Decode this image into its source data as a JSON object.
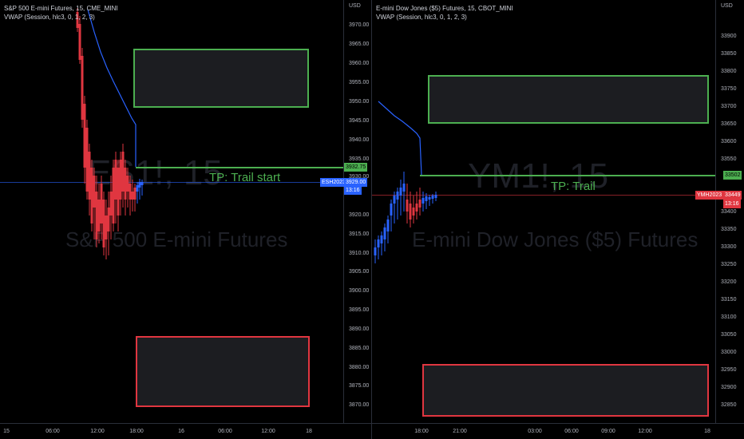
{
  "left": {
    "legend": {
      "title": "S&P 500 E-mini Futures, 15, CME_MINI",
      "indicator": "VWAP (Session, hlc3, 0, 1, 2, 3)"
    },
    "watermark": {
      "symbol": "ES1!, 15",
      "name": "S&P 500 E-mini Futures"
    },
    "axis_unit": "USD",
    "price_ticks": [
      "3970.00",
      "3965.00",
      "3960.00",
      "3955.00",
      "3950.00",
      "3945.00",
      "3940.00",
      "3935.00",
      "3930.00",
      "3925.00",
      "3920.00",
      "3915.00",
      "3910.00",
      "3905.00",
      "3900.00",
      "3895.00",
      "3890.00",
      "3885.00",
      "3880.00",
      "3875.00",
      "3870.00"
    ],
    "time_ticks": [
      "15",
      "06:00",
      "12:00",
      "18:00",
      "16",
      "06:00",
      "12:00",
      "18"
    ],
    "tp_label": "TP: Trail start",
    "tp_price": "3932.75",
    "symbol_tag": "ESH2023",
    "last_price": "3929.00",
    "countdown": "13:16",
    "hidden_tick": "3930.00"
  },
  "right": {
    "legend": {
      "title": "E-mini Dow Jones ($5) Futures, 15, CBOT_MINI",
      "indicator": "VWAP (Session, hlc3, 0, 1, 2, 3)"
    },
    "watermark": {
      "symbol": "YM1!, 15",
      "name": "E-mini Dow Jones ($5) Futures"
    },
    "axis_unit": "USD",
    "price_ticks": [
      "33900",
      "33850",
      "33800",
      "33750",
      "33700",
      "33650",
      "33600",
      "33550",
      "33500",
      "33450",
      "33400",
      "33350",
      "33300",
      "33250",
      "33200",
      "33150",
      "33100",
      "33050",
      "33000",
      "32950",
      "32900",
      "32850"
    ],
    "time_ticks": [
      "18:00",
      "21:00",
      "03:00",
      "06:00",
      "09:00",
      "12:00",
      "18"
    ],
    "tp_label": "TP: Trail",
    "tp_price": "33502",
    "symbol_tag": "YMH2023",
    "last_price": "33449",
    "countdown": "13:16"
  },
  "colors": {
    "background": "#000000",
    "tp_green": "#4caf50",
    "sl_red": "#e03640",
    "vwap_blue": "#2962ff",
    "candle_up": "#2962ff",
    "candle_down": "#e03640",
    "es_tag": "#2962ff",
    "ym_tag": "#e03640"
  }
}
